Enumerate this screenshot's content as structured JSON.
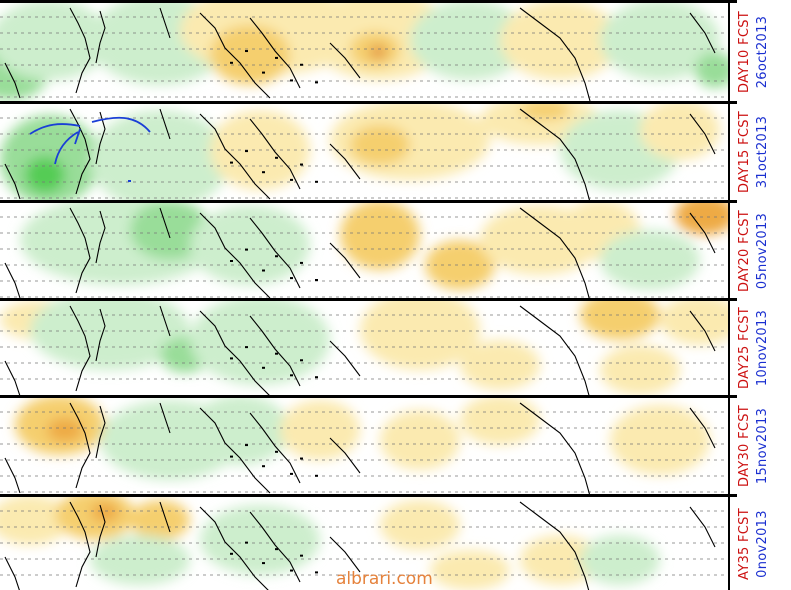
{
  "colors": {
    "wet_light": "#cdeecd",
    "wet_mid": "#99dd99",
    "wet_strong": "#55cc55",
    "dry_light": "#fbeab0",
    "dry_mid": "#f5cf6e",
    "dry_strong": "#eeaa44",
    "dry_core": "#e08a3a",
    "fcst_label": "#cc1111",
    "date_label": "#1a2fd0",
    "annotation": "#1a3fd6",
    "watermark": "#e5823c"
  },
  "panels": [
    {
      "fcst": "DAY10 FCST",
      "date": "26oct2013"
    },
    {
      "fcst": "DAY15 FCST",
      "date": "31oct2013"
    },
    {
      "fcst": "DAY20 FCST",
      "date": "05nov2013"
    },
    {
      "fcst": "DAY25 FCST",
      "date": "10nov2013"
    },
    {
      "fcst": "DAY30 FCST",
      "date": "15nov2013"
    },
    {
      "fcst": "AY35 FCST",
      "date": "0nov2013"
    }
  ],
  "watermark": "albrari.com"
}
